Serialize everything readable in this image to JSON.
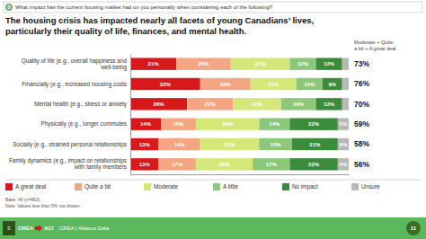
{
  "chart_data": {
    "type": "bar",
    "orientation": "horizontal",
    "stacked": true,
    "data_labels": true,
    "tick_labels": "y",
    "legend": "bottom",
    "title": "The housing crisis has impacted nearly all facets of young Canadians’ lives,",
    "subtitle": "particularly their quality of life, finances, and mental health.",
    "annotations": [
      "What impact has the current housing market had on you personally when considering each of the following?",
      "Moderate + Quite\na bit + A great deal",
      "Base: All (n=863)\nNote: Values less than 5% not shown.",
      "D",
      "≡",
      "CREA",
      "ACI",
      "CREA | Abacus Data",
      "11"
    ],
    "categories": [
      "Quality of life (e.g., overall happiness and well-being",
      "Financially (e.g., increased housing costs",
      "Mental health (e.g., stress or anxiety",
      "Physically (e.g., longer commutes",
      "Socially (e.g., strained personal relationships",
      "Family dynamics (e.g., impact on relationships with family members"
    ],
    "series": [
      {
        "name": "A great deal",
        "color": "#d7191c",
        "values": [
          21,
          32,
          26,
          14,
          13,
          13
        ],
        "value_labels": [
          "21%",
          "32%",
          "26%",
          "14%",
          "13%",
          "13%"
        ]
      },
      {
        "name": "Quite a bit",
        "color": "#f4a582",
        "values": [
          25,
          23,
          21,
          16,
          19,
          17
        ],
        "value_labels": [
          "25%",
          "23%",
          "21%",
          "16%",
          "19%",
          "17%"
        ]
      },
      {
        "name": "Moderate",
        "color": "#d4e87a",
        "values": [
          27,
          21,
          22,
          29,
          27,
          26
        ],
        "value_labels": [
          "27%",
          "21%",
          "22%",
          "29%",
          "27%",
          "26%"
        ]
      },
      {
        "name": "A little",
        "color": "#8dc87a",
        "values": [
          12,
          12,
          16,
          14,
          15,
          17
        ],
        "value_labels": [
          "12%",
          "12%",
          "16%",
          "14%",
          "15%",
          "17%"
        ]
      },
      {
        "name": "No impact",
        "color": "#3a8c3a",
        "values": [
          12,
          9,
          12,
          22,
          21,
          22
        ],
        "value_labels": [
          "12%",
          "9%",
          "12%",
          "22%",
          "21%",
          "22%"
        ]
      },
      {
        "name": "Unsure",
        "color": "#b8b8b8",
        "values": [
          3,
          3,
          3,
          5,
          5,
          5
        ],
        "value_labels": [
          null,
          null,
          null,
          "5%",
          "5%",
          "5%"
        ]
      }
    ],
    "totals": {
      "values": [
        73,
        76,
        70,
        59,
        58,
        56
      ],
      "value_labels": [
        "73%",
        "76%",
        "70%",
        "59%",
        "58%",
        "56%"
      ]
    },
    "xlim": [
      0,
      100
    ]
  }
}
